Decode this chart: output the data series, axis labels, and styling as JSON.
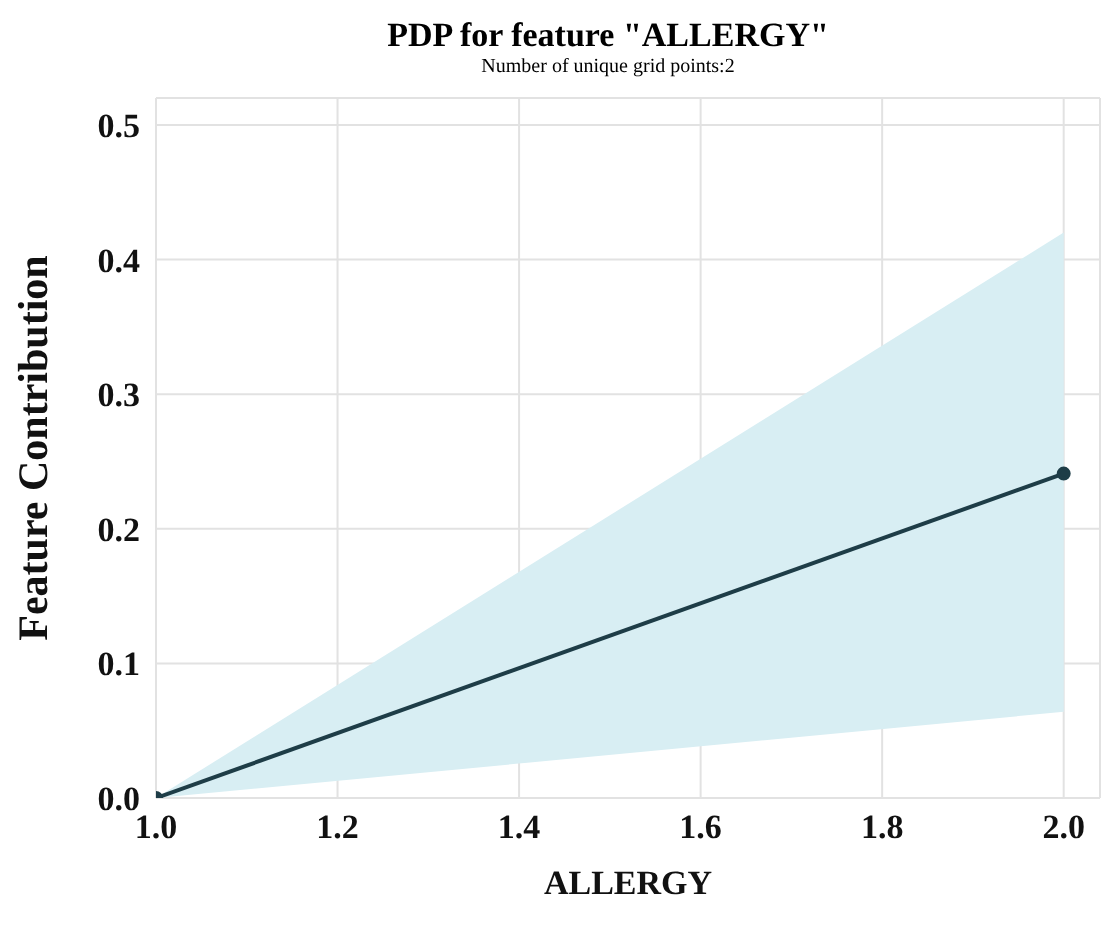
{
  "chart_data": {
    "type": "line",
    "title": "PDP for feature \"ALLERGY\"",
    "subtitle": "Number of unique grid points:2",
    "xlabel": "ALLERGY",
    "ylabel": "Feature Contribution",
    "x": [
      1,
      2
    ],
    "series": [
      {
        "color": "#1e3d47",
        "values": [
          0,
          0.241
        ],
        "lower": [
          0,
          0.064
        ],
        "upper": [
          0,
          0.42
        ]
      }
    ],
    "xlim": [
      1,
      2.04
    ],
    "xticks": [
      {
        "value": 1,
        "label": "1.0"
      },
      1.2,
      1.4,
      1.6,
      1.8,
      {
        "value": 2,
        "label": "2.0"
      }
    ],
    "ylim": [
      0,
      0.52
    ],
    "yticks": [
      {
        "value": 0,
        "label": "0.0"
      },
      0.1,
      0.2,
      0.3,
      0.4,
      0.5
    ],
    "grid": true,
    "marker": "circle",
    "line_style": "solid"
  }
}
